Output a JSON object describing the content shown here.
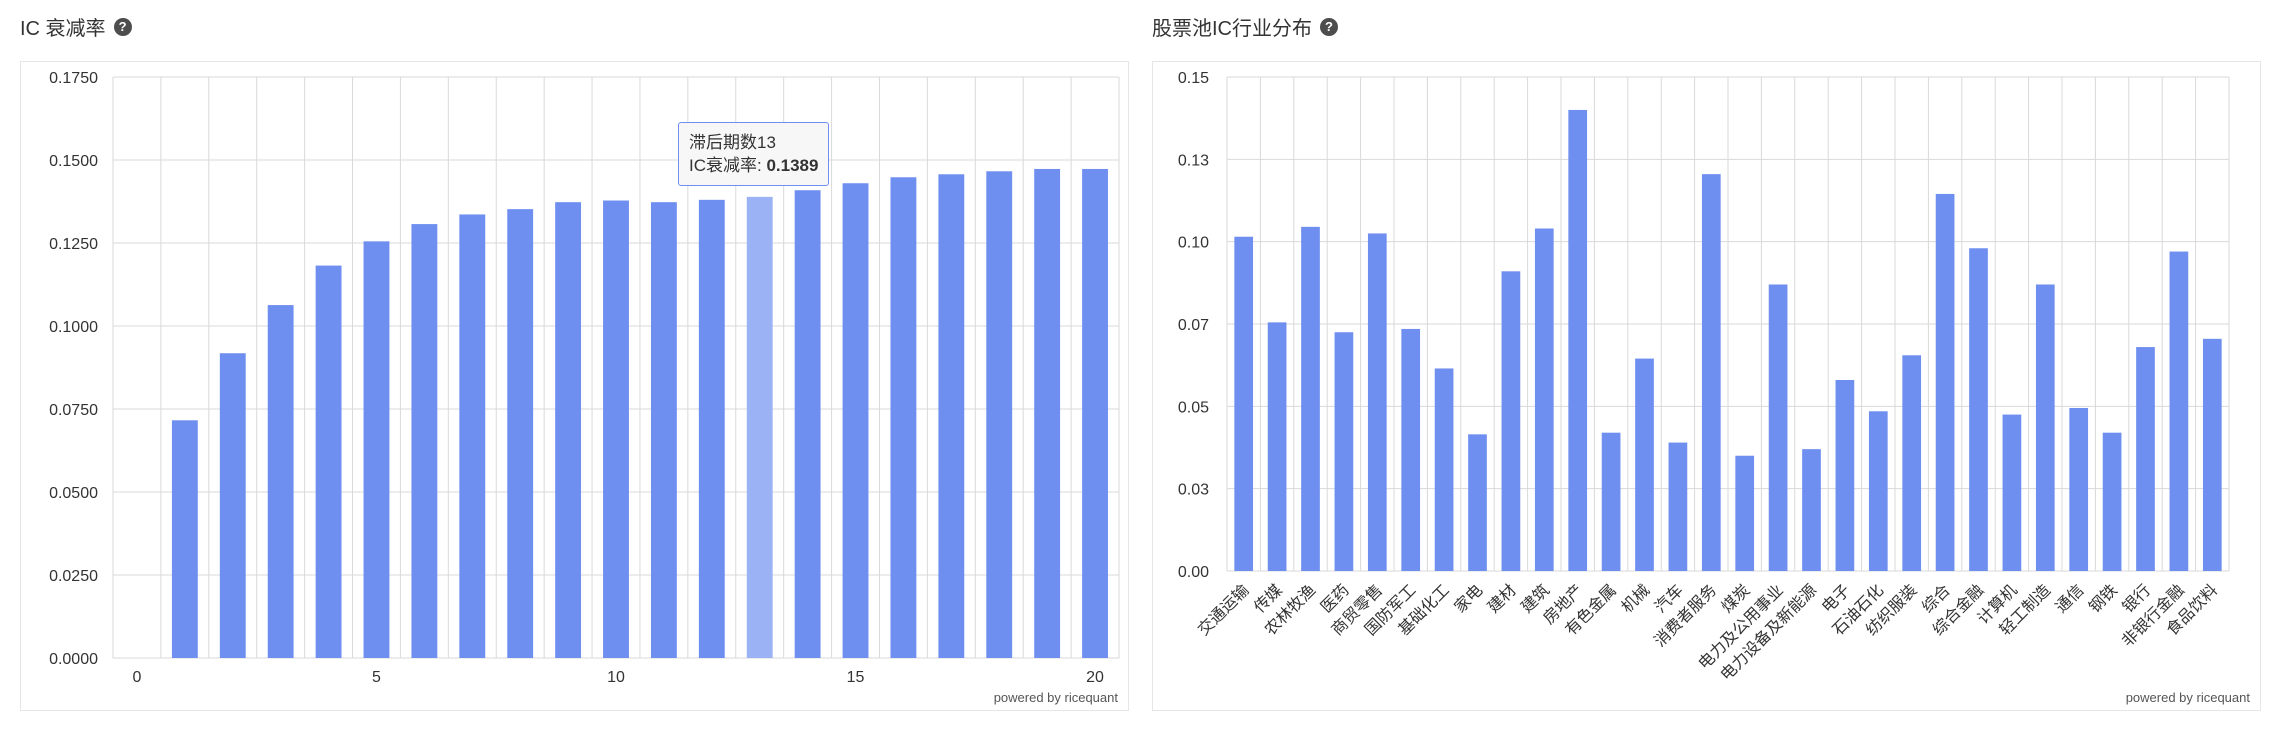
{
  "panels": [
    {
      "title": "IC 衰减率",
      "help": "?"
    },
    {
      "title": "股票池IC行业分布",
      "help": "?"
    }
  ],
  "credit": "powered by ricequant",
  "tooltip": {
    "header": "滞后期数13",
    "label": "IC衰减率: ",
    "value": "0.1389"
  },
  "colors": {
    "bar": "#6f8ff0",
    "bar_highlight": "#9bb2f5",
    "grid": "#d9d9d9"
  },
  "chart_data": [
    {
      "type": "bar",
      "title": "IC 衰减率",
      "x": [
        1,
        2,
        3,
        4,
        5,
        6,
        7,
        8,
        9,
        10,
        11,
        12,
        13,
        14,
        15,
        16,
        17,
        18,
        19,
        20
      ],
      "values": [
        0.0716,
        0.0918,
        0.1063,
        0.1182,
        0.1255,
        0.1307,
        0.1336,
        0.1352,
        0.1373,
        0.1378,
        0.1373,
        0.138,
        0.1389,
        0.1409,
        0.143,
        0.1448,
        0.1457,
        0.1466,
        0.1473,
        0.1473
      ],
      "xlim": [
        0,
        20
      ],
      "xticks": [
        "0",
        "5",
        "10",
        "15",
        "20"
      ],
      "xtick_values": [
        0,
        5,
        10,
        15,
        20
      ],
      "ylim": [
        0,
        0.175
      ],
      "yticks": [
        "0.0000",
        "0.0250",
        "0.0500",
        "0.0750",
        "0.1000",
        "0.1250",
        "0.1500",
        "0.1750"
      ],
      "grid": true,
      "highlight": 13
    },
    {
      "type": "bar",
      "title": "股票池IC行业分布",
      "categories": [
        "交通运输",
        "传媒",
        "农林牧渔",
        "医药",
        "商贸零售",
        "国防军工",
        "基础化工",
        "家电",
        "建材",
        "建筑",
        "房地产",
        "有色金属",
        "机械",
        "汽车",
        "消费者服务",
        "煤炭",
        "电力及公用事业",
        "电力设备及新能源",
        "电子",
        "石油石化",
        "纺织服装",
        "综合",
        "综合金融",
        "计算机",
        "轻工制造",
        "通信",
        "钢铁",
        "银行",
        "非银行金融",
        "食品饮料"
      ],
      "values": [
        0.1015,
        0.0755,
        0.1045,
        0.0725,
        0.1025,
        0.0735,
        0.0615,
        0.0415,
        0.091,
        0.104,
        0.14,
        0.042,
        0.0645,
        0.039,
        0.1205,
        0.035,
        0.087,
        0.037,
        0.058,
        0.0485,
        0.0655,
        0.1145,
        0.098,
        0.0475,
        0.087,
        0.0495,
        0.042,
        0.068,
        0.097,
        0.0705
      ],
      "ylim": [
        0,
        0.15
      ],
      "yticks": [
        "0.00",
        "0.03",
        "0.05",
        "0.07",
        "0.10",
        "0.13",
        "0.15"
      ],
      "grid": true
    }
  ]
}
